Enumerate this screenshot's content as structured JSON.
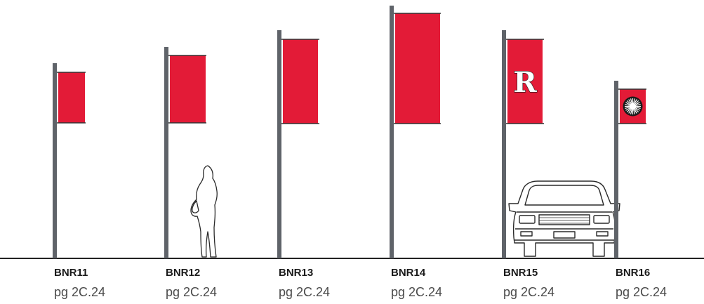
{
  "colors": {
    "banner": "#e31b37",
    "pole": "#5f6369",
    "ground": "#222222",
    "outline": "#2a2a2a"
  },
  "banners": [
    {
      "code": "BNR11",
      "page": "pg 2C.24",
      "graphic": ""
    },
    {
      "code": "BNR12",
      "page": "pg 2C.24",
      "graphic": ""
    },
    {
      "code": "BNR13",
      "page": "pg 2C.24",
      "graphic": ""
    },
    {
      "code": "BNR14",
      "page": "pg 2C.24",
      "graphic": ""
    },
    {
      "code": "BNR15",
      "page": "pg 2C.24",
      "graphic": "R"
    },
    {
      "code": "BNR16",
      "page": "pg 2C.24",
      "graphic": "sunburst-icon"
    }
  ],
  "scale_figures": [
    {
      "type": "pedestrian-silhouette-icon",
      "next_to": "BNR12"
    },
    {
      "type": "car-front-icon",
      "next_to": "BNR15"
    }
  ]
}
